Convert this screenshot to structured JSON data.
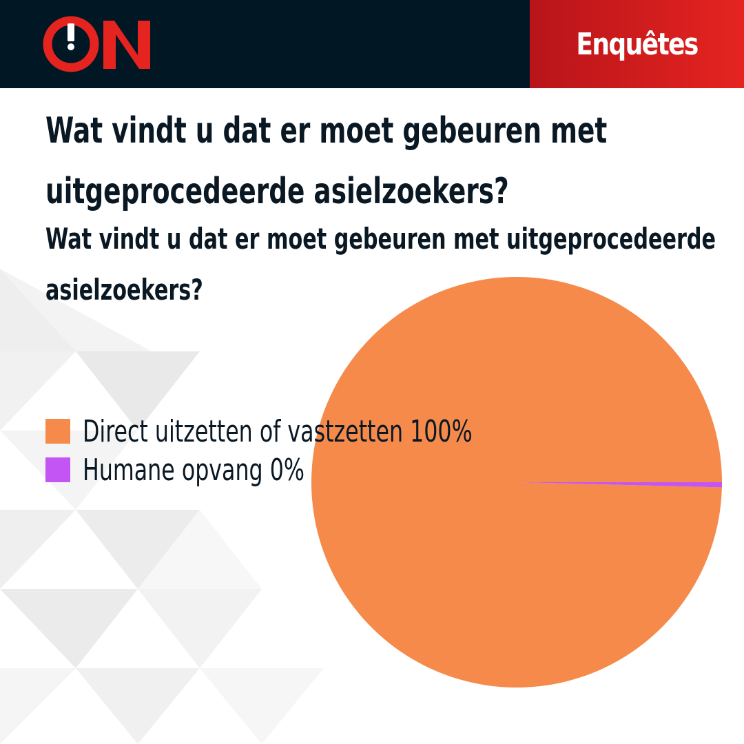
{
  "brand": {
    "logo_text": "ON",
    "section": "Enquêtes"
  },
  "colors": {
    "header_bg": "#021724",
    "accent_red": "#e52420",
    "text": "#0a1824"
  },
  "title": "Wat vindt u dat er moet gebeuren met uitgeprocedeerde asielzoekers?",
  "subtitle": "Wat vindt u dat er moet gebeuren met uitgeprocedeerde asielzoekers?",
  "legend": [
    {
      "label": "Direct uitzetten of vastzetten 100%",
      "color": "#f58a4b"
    },
    {
      "label": "Humane opvang 0%",
      "color": "#c355f5"
    }
  ],
  "chart_data": {
    "type": "pie",
    "title": "Wat vindt u dat er moet gebeuren met uitgeprocedeerde asielzoekers?",
    "labels": [
      "Direct uitzetten of vastzetten",
      "Humane opvang"
    ],
    "values": [
      99.6,
      0.4
    ],
    "display_percentages": [
      "100%",
      "0%"
    ],
    "colors": [
      "#f58a4b",
      "#c355f5"
    ],
    "legend_position": "left"
  }
}
